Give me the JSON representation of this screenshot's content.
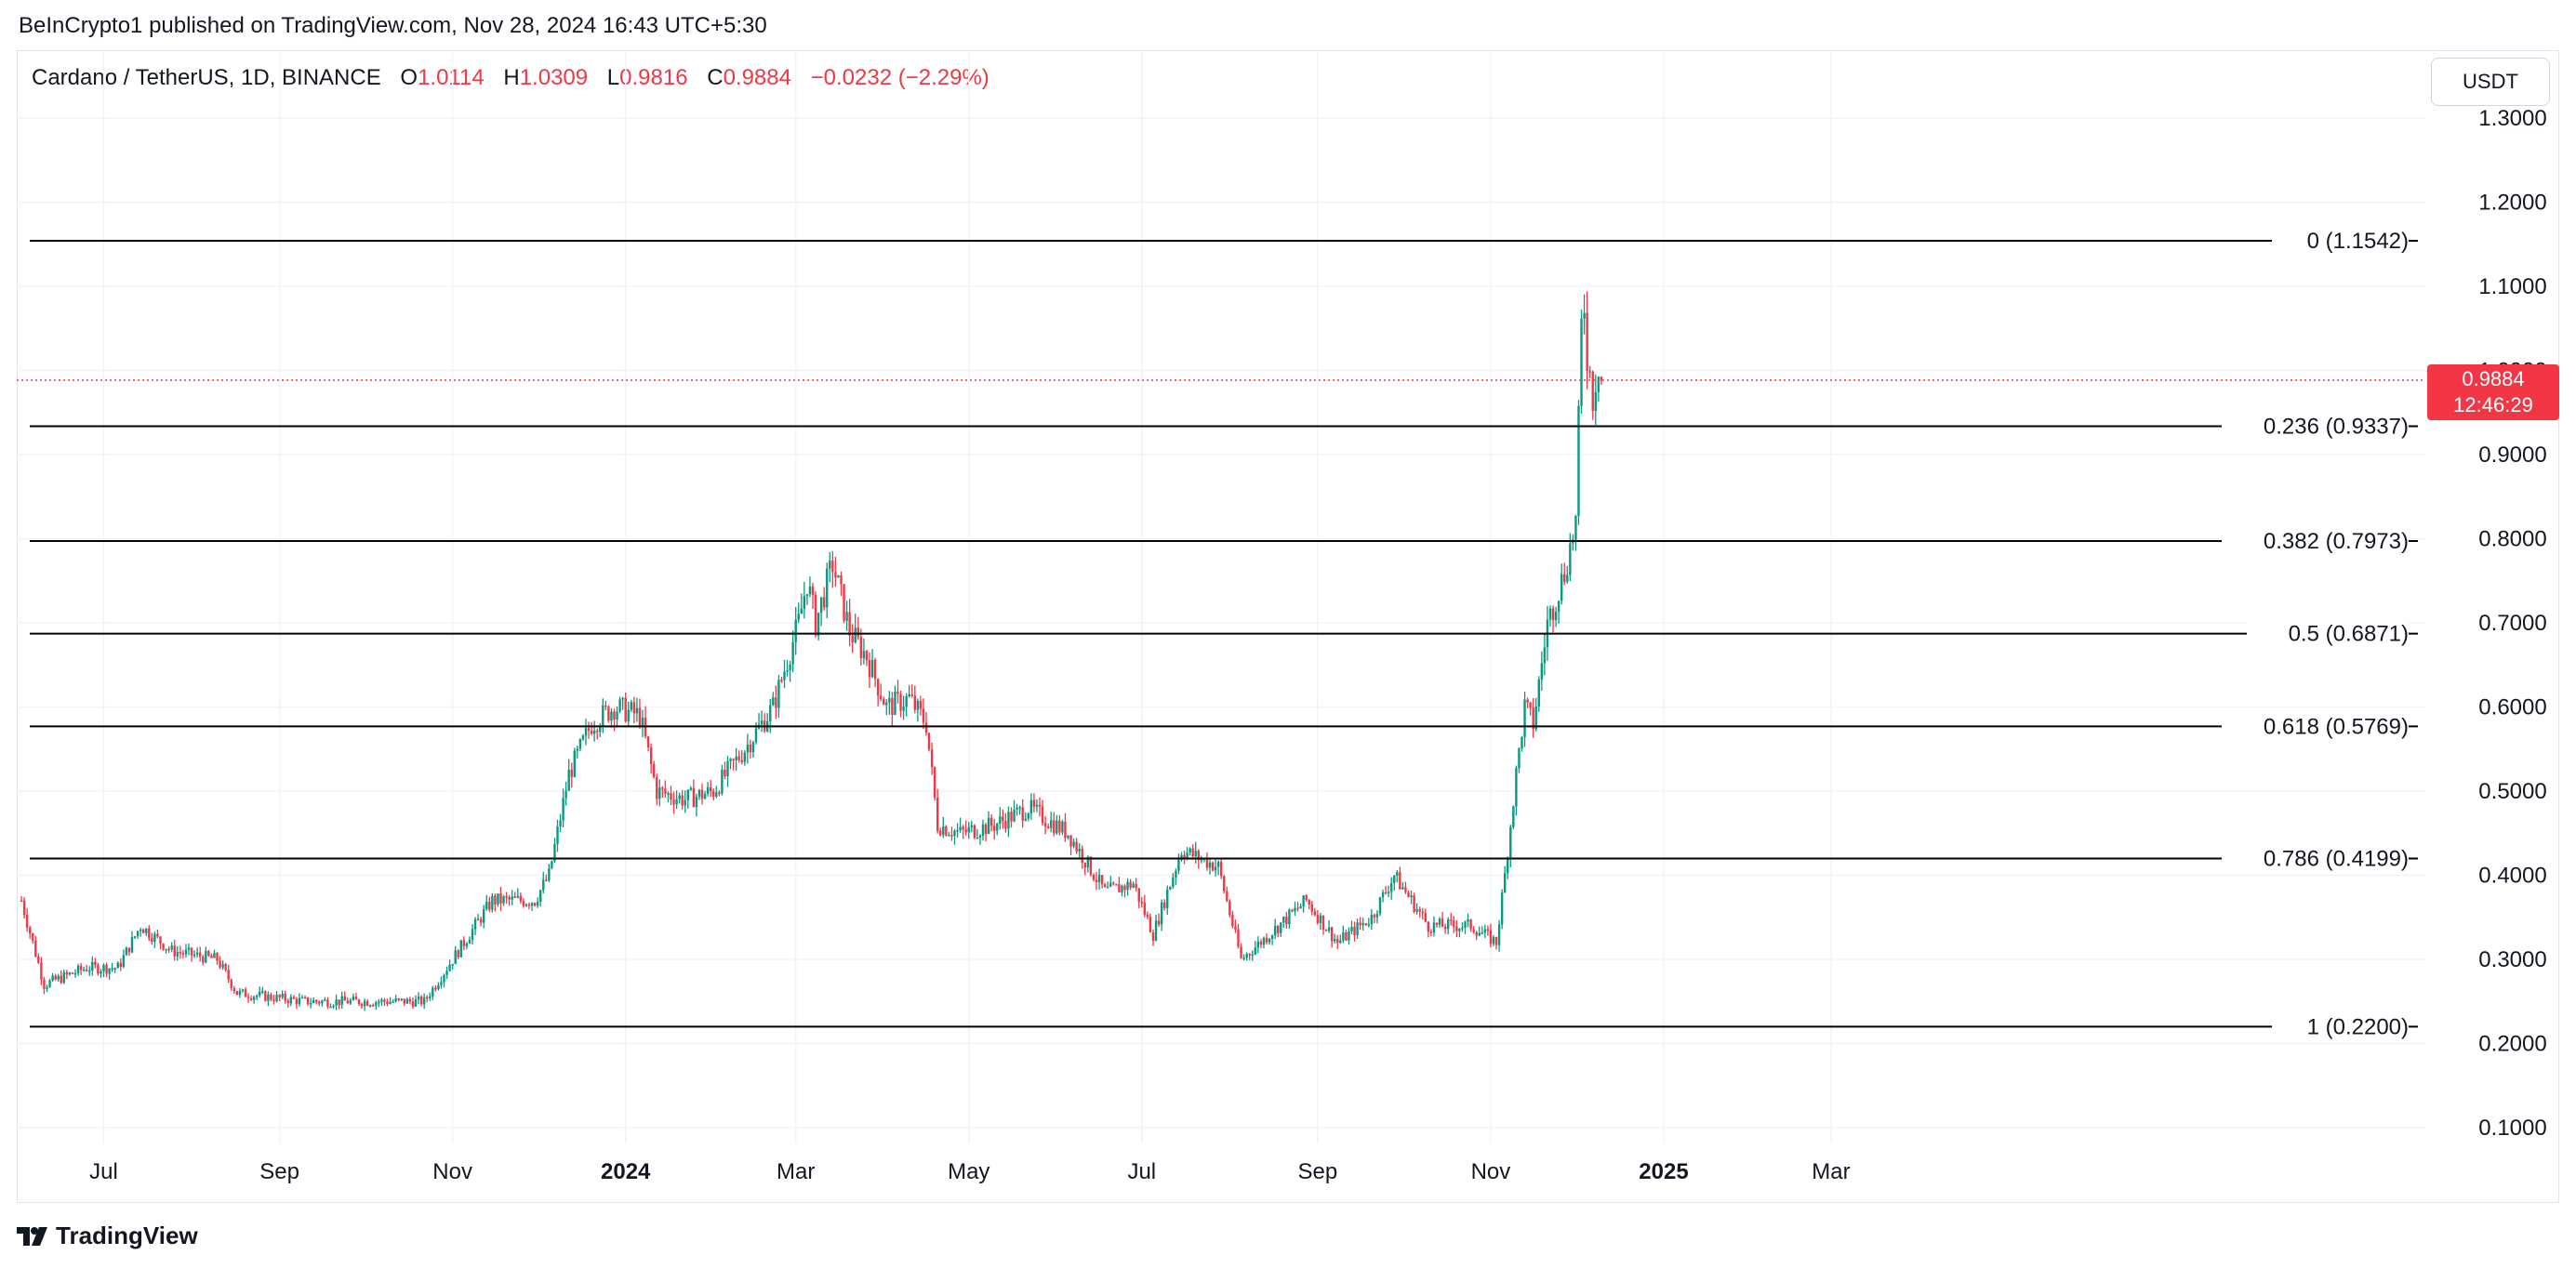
{
  "publisher_line": "BeInCrypto1 published on TradingView.com, Nov 28, 2024 16:43 UTC+5:30",
  "legend": {
    "symbol": "Cardano / TetherUS, 1D, BINANCE",
    "open_label": "O",
    "open": "1.0114",
    "high_label": "H",
    "high": "1.0309",
    "low_label": "L",
    "low": "0.9816",
    "close_label": "C",
    "close": "0.9884",
    "change": "−0.0232 (−2.29%)"
  },
  "currency_button": "USDT",
  "last_price": {
    "price": "0.9884",
    "countdown": "12:46:29"
  },
  "logo_text": "TradingView",
  "colors": {
    "up": "#089981",
    "down": "#f23645",
    "fib_line": "#000000",
    "grid": "#f0f3fa"
  },
  "chart_data": {
    "type": "candlestick",
    "ylim": [
      0.1,
      1.32
    ],
    "y_ticks": [
      "0.1000",
      "0.2000",
      "0.3000",
      "0.4000",
      "0.5000",
      "0.6000",
      "0.7000",
      "0.8000",
      "0.9000",
      "1.0000",
      "1.1000",
      "1.2000",
      "1.3000"
    ],
    "x_ticks": [
      {
        "label": "Jul",
        "date": "2023-07-01",
        "bold": false
      },
      {
        "label": "Sep",
        "date": "2023-09-01",
        "bold": false
      },
      {
        "label": "Nov",
        "date": "2023-11-01",
        "bold": false
      },
      {
        "label": "2024",
        "date": "2024-01-01",
        "bold": true
      },
      {
        "label": "Mar",
        "date": "2024-03-01",
        "bold": false
      },
      {
        "label": "May",
        "date": "2024-05-01",
        "bold": false
      },
      {
        "label": "Jul",
        "date": "2024-07-01",
        "bold": false
      },
      {
        "label": "Sep",
        "date": "2024-09-01",
        "bold": false
      },
      {
        "label": "Nov",
        "date": "2024-11-01",
        "bold": false
      },
      {
        "label": "2025",
        "date": "2025-01-01",
        "bold": true
      },
      {
        "label": "Mar",
        "date": "2025-03-01",
        "bold": false
      }
    ],
    "fib_levels": [
      {
        "label": "0 (1.1542)",
        "value": 1.1542
      },
      {
        "label": "0.236 (0.9337)",
        "value": 0.9337
      },
      {
        "label": "0.382 (0.7973)",
        "value": 0.7973
      },
      {
        "label": "0.5 (0.6871)",
        "value": 0.6871
      },
      {
        "label": "0.618 (0.5769)",
        "value": 0.5769
      },
      {
        "label": "0.786 (0.4199)",
        "value": 0.4199
      },
      {
        "label": "1 (0.2200)",
        "value": 0.22
      }
    ],
    "last_close": 0.9884,
    "close_trend": [
      {
        "date": "2023-06-02",
        "close": 0.37
      },
      {
        "date": "2023-06-10",
        "close": 0.27
      },
      {
        "date": "2023-06-25",
        "close": 0.29
      },
      {
        "date": "2023-07-06",
        "close": 0.29
      },
      {
        "date": "2023-07-14",
        "close": 0.34
      },
      {
        "date": "2023-07-25",
        "close": 0.31
      },
      {
        "date": "2023-08-10",
        "close": 0.3
      },
      {
        "date": "2023-08-17",
        "close": 0.26
      },
      {
        "date": "2023-09-10",
        "close": 0.25
      },
      {
        "date": "2023-10-01",
        "close": 0.25
      },
      {
        "date": "2023-10-15",
        "close": 0.25
      },
      {
        "date": "2023-10-22",
        "close": 0.25
      },
      {
        "date": "2023-11-01",
        "close": 0.3
      },
      {
        "date": "2023-11-15",
        "close": 0.37
      },
      {
        "date": "2023-11-30",
        "close": 0.37
      },
      {
        "date": "2023-12-05",
        "close": 0.4
      },
      {
        "date": "2023-12-12",
        "close": 0.52
      },
      {
        "date": "2023-12-20",
        "close": 0.58
      },
      {
        "date": "2023-12-28",
        "close": 0.6
      },
      {
        "date": "2024-01-06",
        "close": 0.59
      },
      {
        "date": "2024-01-12",
        "close": 0.5
      },
      {
        "date": "2024-01-22",
        "close": 0.49
      },
      {
        "date": "2024-02-01",
        "close": 0.5
      },
      {
        "date": "2024-02-12",
        "close": 0.55
      },
      {
        "date": "2024-02-22",
        "close": 0.6
      },
      {
        "date": "2024-03-02",
        "close": 0.7
      },
      {
        "date": "2024-03-05",
        "close": 0.75
      },
      {
        "date": "2024-03-08",
        "close": 0.7
      },
      {
        "date": "2024-03-14",
        "close": 0.77
      },
      {
        "date": "2024-03-20",
        "close": 0.69
      },
      {
        "date": "2024-03-26",
        "close": 0.66
      },
      {
        "date": "2024-04-02",
        "close": 0.6
      },
      {
        "date": "2024-04-10",
        "close": 0.61
      },
      {
        "date": "2024-04-16",
        "close": 0.58
      },
      {
        "date": "2024-04-20",
        "close": 0.46
      },
      {
        "date": "2024-04-28",
        "close": 0.45
      },
      {
        "date": "2024-05-10",
        "close": 0.46
      },
      {
        "date": "2024-05-22",
        "close": 0.48
      },
      {
        "date": "2024-06-05",
        "close": 0.45
      },
      {
        "date": "2024-06-18",
        "close": 0.38
      },
      {
        "date": "2024-06-28",
        "close": 0.39
      },
      {
        "date": "2024-07-05",
        "close": 0.33
      },
      {
        "date": "2024-07-15",
        "close": 0.43
      },
      {
        "date": "2024-07-28",
        "close": 0.41
      },
      {
        "date": "2024-08-05",
        "close": 0.3
      },
      {
        "date": "2024-08-15",
        "close": 0.33
      },
      {
        "date": "2024-08-28",
        "close": 0.37
      },
      {
        "date": "2024-09-08",
        "close": 0.32
      },
      {
        "date": "2024-09-20",
        "close": 0.35
      },
      {
        "date": "2024-09-28",
        "close": 0.4
      },
      {
        "date": "2024-10-10",
        "close": 0.34
      },
      {
        "date": "2024-10-25",
        "close": 0.34
      },
      {
        "date": "2024-11-03",
        "close": 0.32
      },
      {
        "date": "2024-11-06",
        "close": 0.4
      },
      {
        "date": "2024-11-10",
        "close": 0.52
      },
      {
        "date": "2024-11-13",
        "close": 0.6
      },
      {
        "date": "2024-11-16",
        "close": 0.58
      },
      {
        "date": "2024-11-21",
        "close": 0.7
      },
      {
        "date": "2024-11-24",
        "close": 0.73
      },
      {
        "date": "2024-11-27",
        "close": 0.76
      },
      {
        "date": "2024-12-01",
        "close": 0.82
      },
      {
        "date": "2024-12-03",
        "close": 1.05
      },
      {
        "date": "2024-12-04",
        "close": 1.08
      },
      {
        "date": "2024-12-05",
        "close": 1.02
      },
      {
        "date": "2024-12-07",
        "close": 0.97
      },
      {
        "date": "2024-12-09",
        "close": 1.01
      },
      {
        "date": "2024-12-10",
        "close": 0.99
      }
    ]
  }
}
